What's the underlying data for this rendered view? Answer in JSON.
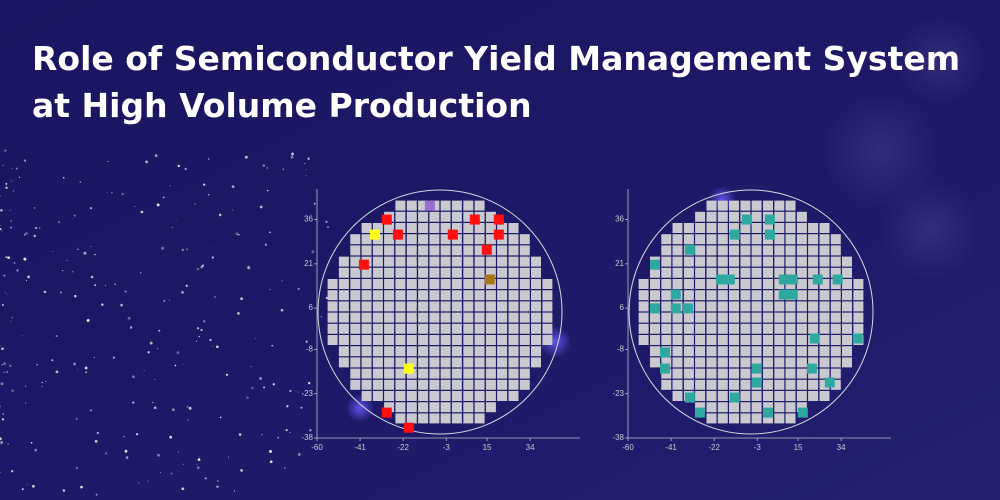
{
  "title_lines": [
    "Role of Semiconductor Yield Management System",
    "at High Volume Production"
  ],
  "chart_data": [
    {
      "type": "scatter",
      "xlim": [
        -60,
        56
      ],
      "ylim": [
        -38,
        45
      ],
      "xticks": [
        -60,
        -41,
        -22,
        -3,
        15,
        34
      ],
      "yticks": [
        -38,
        -23,
        -8,
        6,
        21,
        36
      ],
      "series": [
        {
          "color": "#ff1010",
          "x": [
            -29.2,
            9.6,
            20.2,
            -24.3,
            -0.1,
            20.2,
            14.9,
            -39.3,
            -29.2,
            -19.5
          ],
          "values": [
            36,
            36,
            36,
            30.9,
            30.9,
            30.9,
            25.8,
            20.7,
            -29.4,
            -34.5
          ]
        },
        {
          "color": "#ffff1a",
          "x": [
            -34.4,
            -19.5
          ],
          "values": [
            30.9,
            -14.5
          ]
        },
        {
          "color": "#9b6fd0",
          "x": [
            -10.2
          ],
          "values": [
            40.7
          ]
        },
        {
          "color": "#a87418",
          "x": [
            16.2
          ],
          "values": [
            15.7
          ]
        }
      ]
    },
    {
      "type": "scatter",
      "xlim": [
        -60,
        56
      ],
      "ylim": [
        -38,
        45
      ],
      "xticks": [
        -60,
        -41,
        -22,
        -3,
        15,
        34
      ],
      "yticks": [
        -38,
        -23,
        -8,
        6,
        21,
        36
      ],
      "series": [
        {
          "color": "#2fa8a0",
          "x": [
            -7.6,
            2.6,
            -12.9,
            2.6,
            -32.7,
            -48.1,
            -19,
            -15.1,
            8.7,
            12.7,
            23.7,
            32.5,
            -38.9,
            8.7,
            12.7,
            -48.1,
            -38.9,
            -33.6,
            22.4,
            41.3,
            -43.7,
            -43.7,
            -3.2,
            21.1,
            -3.2,
            29,
            -32.7,
            -12.9,
            -28.3,
            1.7,
            17.1
          ],
          "values": [
            36,
            36,
            30.9,
            30.9,
            25.8,
            20.7,
            15.7,
            15.7,
            15.7,
            15.7,
            15.7,
            15.7,
            10.6,
            10.6,
            10.6,
            5.9,
            5.9,
            5.9,
            -4.3,
            -4.3,
            -9,
            -14.5,
            -14.5,
            -14.5,
            -19.2,
            -19.2,
            -24.3,
            -24.3,
            -29.4,
            -29.4,
            -29.4
          ]
        }
      ]
    }
  ]
}
